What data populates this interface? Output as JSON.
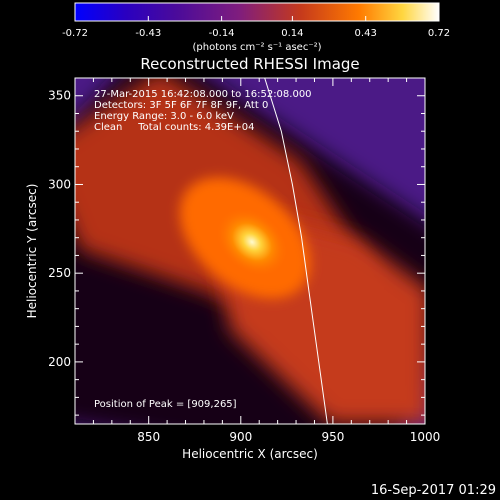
{
  "chart_data": {
    "type": "heatmap",
    "title": "Reconstructed RHESSI Image",
    "xlabel": "Heliocentric X (arcsec)",
    "ylabel": "Heliocentric Y (arcsec)",
    "xlim": [
      810,
      1000
    ],
    "ylim": [
      165,
      360
    ],
    "x_ticks": [
      850,
      900,
      950,
      1000
    ],
    "y_ticks": [
      200,
      250,
      300,
      350
    ],
    "colorbar": {
      "ticks": [
        "-0.72",
        "-0.43",
        "-0.14",
        "0.14",
        "0.43",
        "0.72"
      ],
      "range": [
        -0.72,
        0.72
      ],
      "units": "(photons cm⁻² s⁻¹ asec⁻²)",
      "colors": [
        "#0000ff",
        "#2a00c0",
        "#4b0b9a",
        "#7f1d7e",
        "#c53a1c",
        "#ff7a00",
        "#ffd640",
        "#ffffff"
      ]
    },
    "annotations": {
      "time": "27-Mar-2015 16:42:08.000 to 16:52:08.000",
      "detectors": "Detectors: 3F 5F 6F 7F 8F 9F, Att 0",
      "energy": "Energy Range: 3.0 - 6.0 keV",
      "clean": "Clean     Total counts: 4.39E+04",
      "peak": "Position of Peak = [909,265]"
    },
    "peak": [
      909,
      265
    ],
    "limb_line": [
      [
        913,
        360
      ],
      [
        922,
        330
      ],
      [
        928,
        300
      ],
      [
        933,
        270
      ],
      [
        937,
        240
      ],
      [
        941,
        210
      ],
      [
        945,
        180
      ],
      [
        947,
        165
      ]
    ],
    "timestamp": "16-Sep-2017 01:29"
  }
}
